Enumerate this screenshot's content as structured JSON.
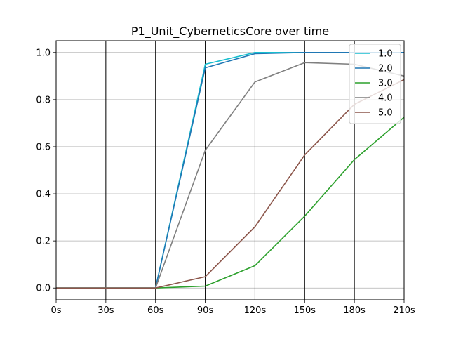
{
  "chart_data": {
    "type": "line",
    "title": "P1_Unit_CyberneticsCore over time",
    "xlabel": "",
    "ylabel": "",
    "categories": [
      "0s",
      "30s",
      "60s",
      "90s",
      "120s",
      "150s",
      "180s",
      "210s"
    ],
    "xlim": [
      0,
      7
    ],
    "ylim": [
      -0.05,
      1.05
    ],
    "yticks": [
      0.0,
      0.2,
      0.4,
      0.6,
      0.8,
      1.0
    ],
    "ytick_labels": [
      "0.0",
      "0.2",
      "0.4",
      "0.6",
      "0.8",
      "1.0"
    ],
    "grid": {
      "x": "black vertical lines",
      "y": "gray horizontal lines"
    },
    "legend_position": "top-right",
    "series": [
      {
        "name": "1.0",
        "color": "#17becf",
        "values": [
          0,
          0,
          0,
          0.95,
          1.0,
          1.0,
          1.0,
          1.0
        ]
      },
      {
        "name": "2.0",
        "color": "#1f77b4",
        "values": [
          0,
          0,
          0,
          0.935,
          0.995,
          1.0,
          1.0,
          1.0
        ]
      },
      {
        "name": "3.0",
        "color": "#2ca02c",
        "values": [
          0,
          0,
          0,
          0.008,
          0.095,
          0.305,
          0.545,
          0.725
        ]
      },
      {
        "name": "4.0",
        "color": "#7f7f7f",
        "values": [
          0,
          0,
          0,
          0.585,
          0.875,
          0.957,
          0.95,
          0.9
        ]
      },
      {
        "name": "5.0",
        "color": "#8c564b",
        "values": [
          0,
          0,
          0,
          0.048,
          0.26,
          0.565,
          0.78,
          0.885
        ]
      }
    ]
  }
}
